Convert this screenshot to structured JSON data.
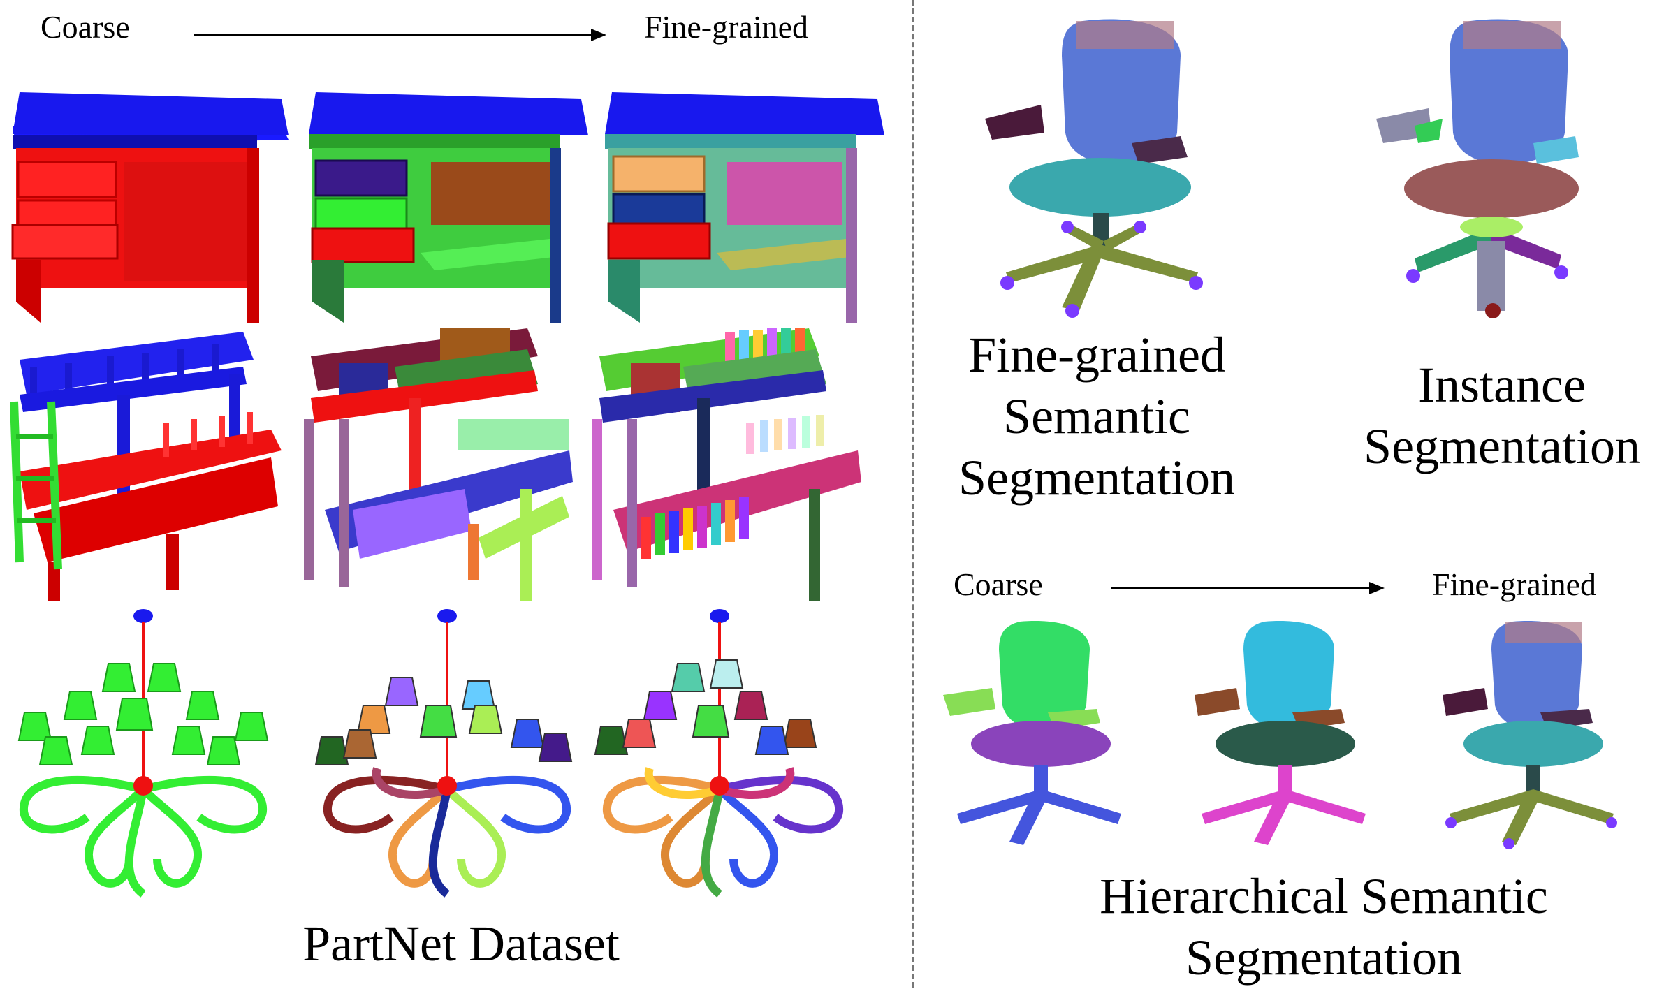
{
  "left_panel": {
    "coarse_label": "Coarse",
    "fine_label": "Fine-grained",
    "caption": "PartNet Dataset",
    "rows": [
      {
        "object": "desk",
        "levels": [
          "coarse",
          "middle",
          "fine"
        ]
      },
      {
        "object": "bunk-bed",
        "levels": [
          "coarse",
          "middle",
          "fine"
        ]
      },
      {
        "object": "chandelier",
        "levels": [
          "coarse",
          "middle",
          "fine"
        ]
      }
    ]
  },
  "right_panel": {
    "fine_semantic_caption": "Fine-grained\nSemantic\nSegmentation",
    "instance_caption": "Instance\nSegmentation",
    "coarse_label": "Coarse",
    "fine_label": "Fine-grained",
    "hierarchical_caption": "Hierarchical Semantic\nSegmentation"
  },
  "colors": {
    "red": "#ff1a1a",
    "blue": "#1a1aff",
    "green": "#33ee33",
    "chair_back": "#5a78d6",
    "chair_seat": "#3aa8ad",
    "chair_base": "#7c8f3a",
    "wheel": "#7a3aff"
  }
}
